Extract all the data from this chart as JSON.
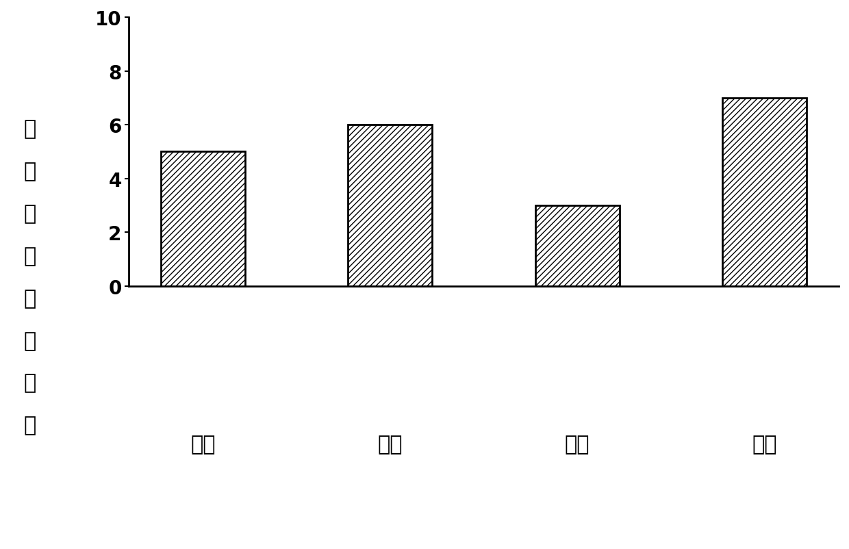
{
  "categories": [
    "发帖",
    "点赞",
    "转发",
    "评论"
  ],
  "values": [
    5.0,
    6.0,
    3.0,
    7.0
  ],
  "bar_color": "#ffffff",
  "bar_edgecolor": "#000000",
  "hatch": "////",
  "ylabel_chars": [
    "取",
    "对",
    "数",
    "后",
    "的",
    "行",
    "为",
    "数"
  ],
  "ylim": [
    0,
    10
  ],
  "yticks": [
    0,
    2,
    4,
    6,
    8,
    10
  ],
  "background_color": "#ffffff",
  "ylabel_fontsize": 22,
  "tick_fontsize": 20,
  "xtick_fontsize": 22,
  "bar_width": 0.45,
  "linewidth": 2.0,
  "font_weight": "bold"
}
